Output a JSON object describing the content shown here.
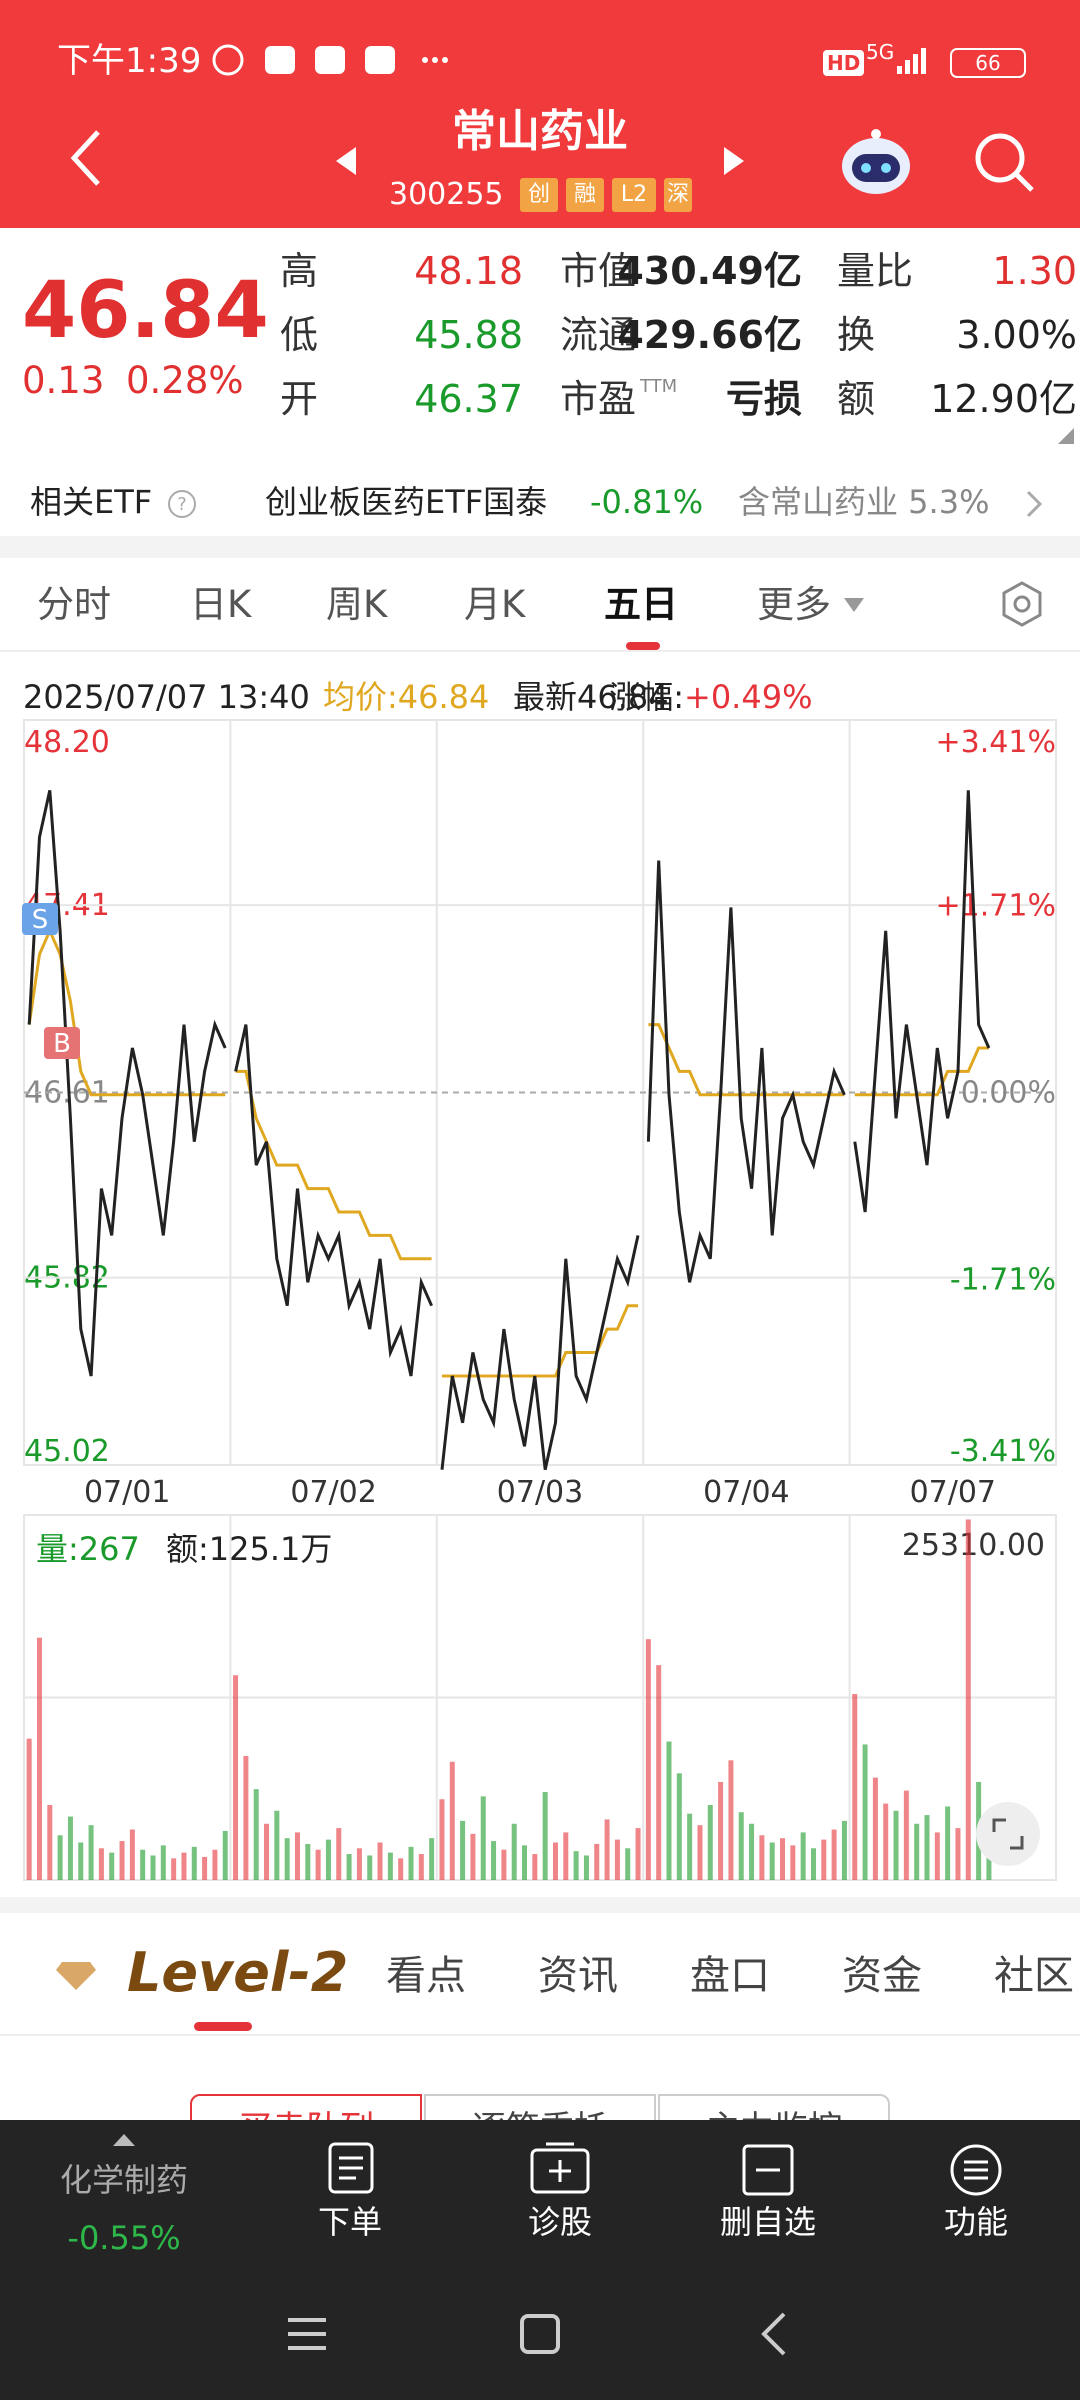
{
  "status_bar": {
    "time": "下午1:39",
    "hd": "HD",
    "network": "5G",
    "battery": "66"
  },
  "header": {
    "title": "常山药业",
    "code": "300255",
    "tags": [
      "创",
      "融",
      "L2",
      "深"
    ]
  },
  "quote": {
    "price": "46.84",
    "change": "0.13",
    "change_pct": "0.28%",
    "stats": [
      [
        {
          "label": "高",
          "value": "48.18"
        },
        {
          "label": "市值",
          "value": "430.49亿"
        },
        {
          "label": "量比",
          "value": "1.30"
        }
      ],
      [
        {
          "label": "低",
          "value": "45.88"
        },
        {
          "label": "流通",
          "value": "429.66亿"
        },
        {
          "label": "换",
          "value": "3.00%"
        }
      ],
      [
        {
          "label": "开",
          "value": "46.37"
        },
        {
          "label": "市盈",
          "sup": "TTM",
          "value": "亏损"
        },
        {
          "label": "额",
          "value": "12.90亿"
        }
      ]
    ]
  },
  "etf": {
    "label": "相关ETF",
    "name": "创业板医药ETF国泰",
    "change": "-0.81%",
    "holding": "含常山药业 5.3%"
  },
  "tabs": {
    "items": [
      "分时",
      "日K",
      "周K",
      "月K",
      "五日",
      "更多"
    ],
    "active": 4
  },
  "chart_data": {
    "type": "line",
    "time": "2025/07/07 13:40",
    "avg_label": "均价:46.84",
    "latest_label": "最新46.84",
    "change_label": "涨幅:",
    "change": "+0.49%",
    "categories": [
      "07/01",
      "07/02",
      "07/03",
      "07/04",
      "07/07"
    ],
    "price": [
      [
        46.9,
        47.7,
        47.9,
        47.3,
        46.5,
        45.6,
        45.4,
        46.2,
        46.0,
        46.5,
        46.8,
        46.6,
        46.3,
        46.0,
        46.4,
        46.9,
        46.4,
        46.7,
        46.9,
        46.8
      ],
      [
        46.7,
        46.9,
        46.3,
        46.4,
        45.9,
        45.7,
        46.2,
        45.8,
        46.0,
        45.9,
        46.0,
        45.7,
        45.8,
        45.6,
        45.9,
        45.5,
        45.6,
        45.4,
        45.8,
        45.7
      ],
      [
        45.0,
        45.4,
        45.2,
        45.5,
        45.3,
        45.2,
        45.6,
        45.3,
        45.1,
        45.4,
        45.0,
        45.2,
        45.9,
        45.4,
        45.3,
        45.5,
        45.7,
        45.9,
        45.8,
        46.0
      ],
      [
        46.4,
        47.6,
        46.6,
        46.1,
        45.8,
        46.0,
        45.9,
        46.6,
        47.4,
        46.5,
        46.2,
        46.8,
        46.0,
        46.5,
        46.6,
        46.4,
        46.3,
        46.5,
        46.7,
        46.6
      ],
      [
        46.4,
        46.1,
        46.7,
        47.3,
        46.5,
        46.9,
        46.6,
        46.3,
        46.8,
        46.5,
        46.7,
        47.9,
        46.9,
        46.8,
        null,
        null,
        null,
        null,
        null,
        null
      ]
    ],
    "avg": [
      [
        46.9,
        47.2,
        47.3,
        47.2,
        47.0,
        46.7,
        46.6,
        46.6,
        46.6,
        46.6,
        46.6,
        46.6,
        46.6,
        46.6,
        46.6,
        46.6,
        46.6,
        46.6,
        46.6,
        46.6
      ],
      [
        46.7,
        46.7,
        46.5,
        46.4,
        46.3,
        46.3,
        46.3,
        46.2,
        46.2,
        46.2,
        46.1,
        46.1,
        46.1,
        46.0,
        46.0,
        46.0,
        45.9,
        45.9,
        45.9,
        45.9
      ],
      [
        45.4,
        45.4,
        45.4,
        45.4,
        45.4,
        45.4,
        45.4,
        45.4,
        45.4,
        45.4,
        45.4,
        45.4,
        45.5,
        45.5,
        45.5,
        45.5,
        45.6,
        45.6,
        45.7,
        45.7
      ],
      [
        46.9,
        46.9,
        46.8,
        46.7,
        46.7,
        46.6,
        46.6,
        46.6,
        46.6,
        46.6,
        46.6,
        46.6,
        46.6,
        46.6,
        46.6,
        46.6,
        46.6,
        46.6,
        46.6,
        46.6
      ],
      [
        46.6,
        46.6,
        46.6,
        46.6,
        46.6,
        46.6,
        46.6,
        46.6,
        46.6,
        46.7,
        46.7,
        46.7,
        46.8,
        46.8,
        null,
        null,
        null,
        null,
        null,
        null
      ]
    ],
    "price_color": "#222222",
    "avg_color": "#e0a820",
    "up_color": "#e5333a",
    "down_color": "#1a9a2a",
    "ylim": [
      45.02,
      48.2
    ],
    "yticks": [
      {
        "value": 48.2,
        "label": "48.20"
      },
      47.41,
      46.61,
      45.82,
      45.02
    ],
    "y2lim": [
      -3.41,
      3.41
    ],
    "y2ticks": [
      {
        "value": 3.41,
        "label": "+3.41%"
      },
      {
        "value": 1.71,
        "label": "+1.71%"
      },
      {
        "value": 0,
        "label": "0.00%"
      },
      {
        "value": -1.71,
        "label": "-1.71%"
      },
      {
        "value": -3.41,
        "label": "-3.41%"
      }
    ],
    "markers": [
      "S",
      "B"
    ],
    "volume_label": "量:267",
    "amount_label": "额:125.1万",
    "vol_max_label": "25310.00",
    "vol_ylim": [
      0,
      25310
    ],
    "volume": [
      [
        9800,
        16800,
        5200,
        3100,
        4400,
        2600,
        3800,
        2200,
        1900,
        2700,
        3500,
        2100,
        1700,
        2400,
        1500,
        1900,
        2300,
        1600,
        2100,
        3400
      ],
      [
        14200,
        8600,
        6300,
        3900,
        4800,
        2900,
        3300,
        2500,
        2100,
        2800,
        3600,
        1800,
        2200,
        1700,
        2600,
        1900,
        1500,
        2300,
        1800,
        2900
      ],
      [
        5600,
        8200,
        4100,
        3200,
        5800,
        2700,
        2100,
        3900,
        2400,
        1800,
        6100,
        2600,
        3300,
        2000,
        1700,
        2500,
        4200,
        2800,
        2200,
        3600
      ],
      [
        16700,
        14900,
        9600,
        7400,
        4600,
        3800,
        5200,
        6800,
        8300,
        4700,
        3900,
        3100,
        2600,
        2900,
        2400,
        3300,
        2200,
        2800,
        3500,
        4100
      ],
      [
        12900,
        9400,
        7100,
        5300,
        4800,
        6200,
        3900,
        4500,
        3300,
        5100,
        3600,
        25000,
        6800,
        3200,
        null,
        null,
        null,
        null,
        null,
        null
      ]
    ]
  },
  "level2": {
    "brand": "Level-2",
    "tabs": [
      "看点",
      "资讯",
      "盘口",
      "资金",
      "社区"
    ],
    "sub_tabs": [
      "买卖队列",
      "逐笔委托",
      "主力监控"
    ]
  },
  "bottom_nav": {
    "sector": "化学制药",
    "sector_change": "-0.55%",
    "items": [
      "下单",
      "诊股",
      "删自选",
      "功能"
    ]
  }
}
